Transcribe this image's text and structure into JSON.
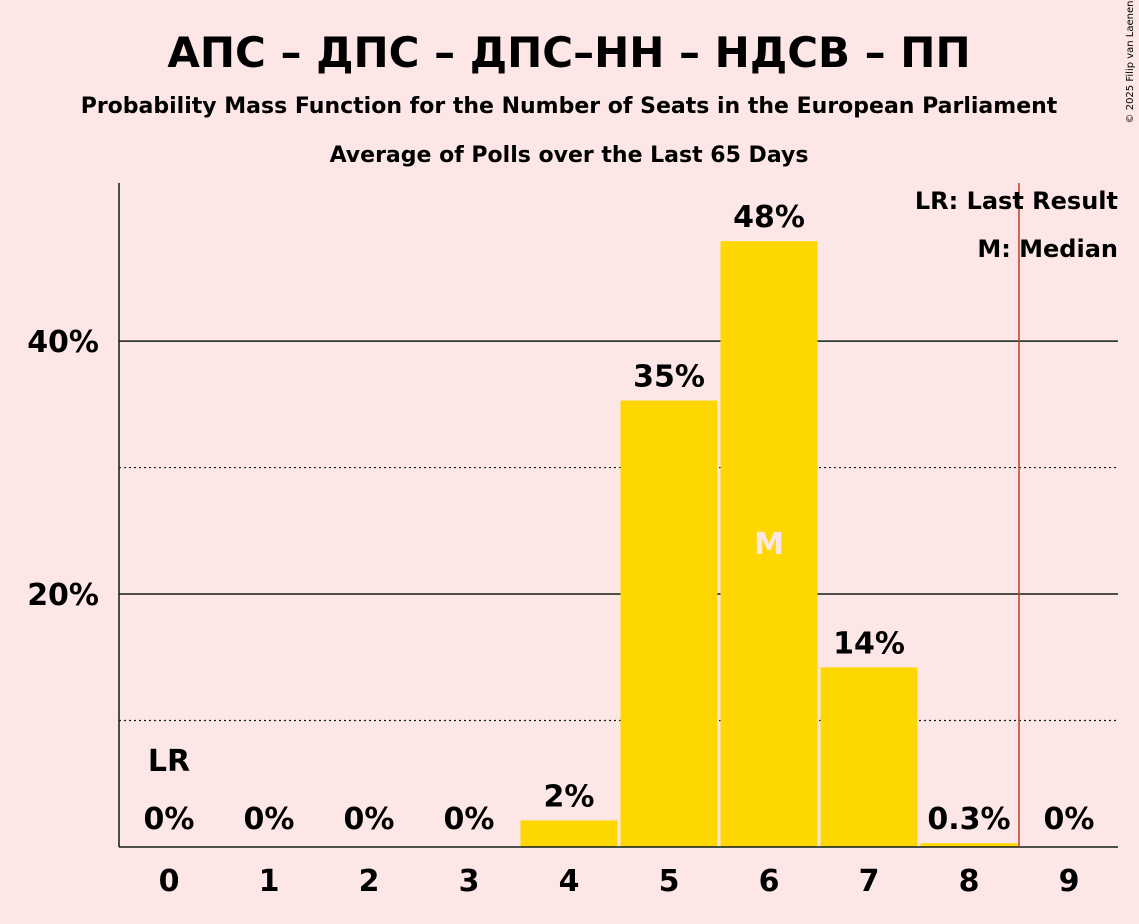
{
  "chart_data": {
    "type": "bar",
    "title": "АПС – ДПС – ДПС–НН – НДСВ – ПП",
    "subtitle": "Probability Mass Function for the Number of Seats in the European Parliament",
    "subtitle2": "Average of Polls over the Last 65 Days",
    "copyright": "© 2025 Filip van Laenen",
    "categories": [
      "0",
      "1",
      "2",
      "3",
      "4",
      "5",
      "6",
      "7",
      "8",
      "9"
    ],
    "values": [
      0,
      0,
      0,
      0,
      2.1,
      35.3,
      47.9,
      14.2,
      0.3,
      0
    ],
    "data_labels": [
      "0%",
      "0%",
      "0%",
      "0%",
      "2%",
      "35%",
      "48%",
      "14%",
      "0.3%",
      "0%"
    ],
    "ylim": [
      0,
      52.5
    ],
    "yticks": [
      {
        "value": 20,
        "label": "20%"
      },
      {
        "value": 40,
        "label": "40%"
      }
    ],
    "minor_gridlines": [
      10,
      30
    ],
    "bar_color": "#ffd700",
    "last_result": {
      "seats": 8.5,
      "label": "LR",
      "label_at_category": "0",
      "line_color": "#c0392b"
    },
    "median": {
      "category": "6",
      "label": "M"
    },
    "legend": {
      "position": "top-right",
      "items": [
        "LR: Last Result",
        "M: Median"
      ]
    },
    "grid": true,
    "xlabel": "",
    "ylabel": ""
  }
}
